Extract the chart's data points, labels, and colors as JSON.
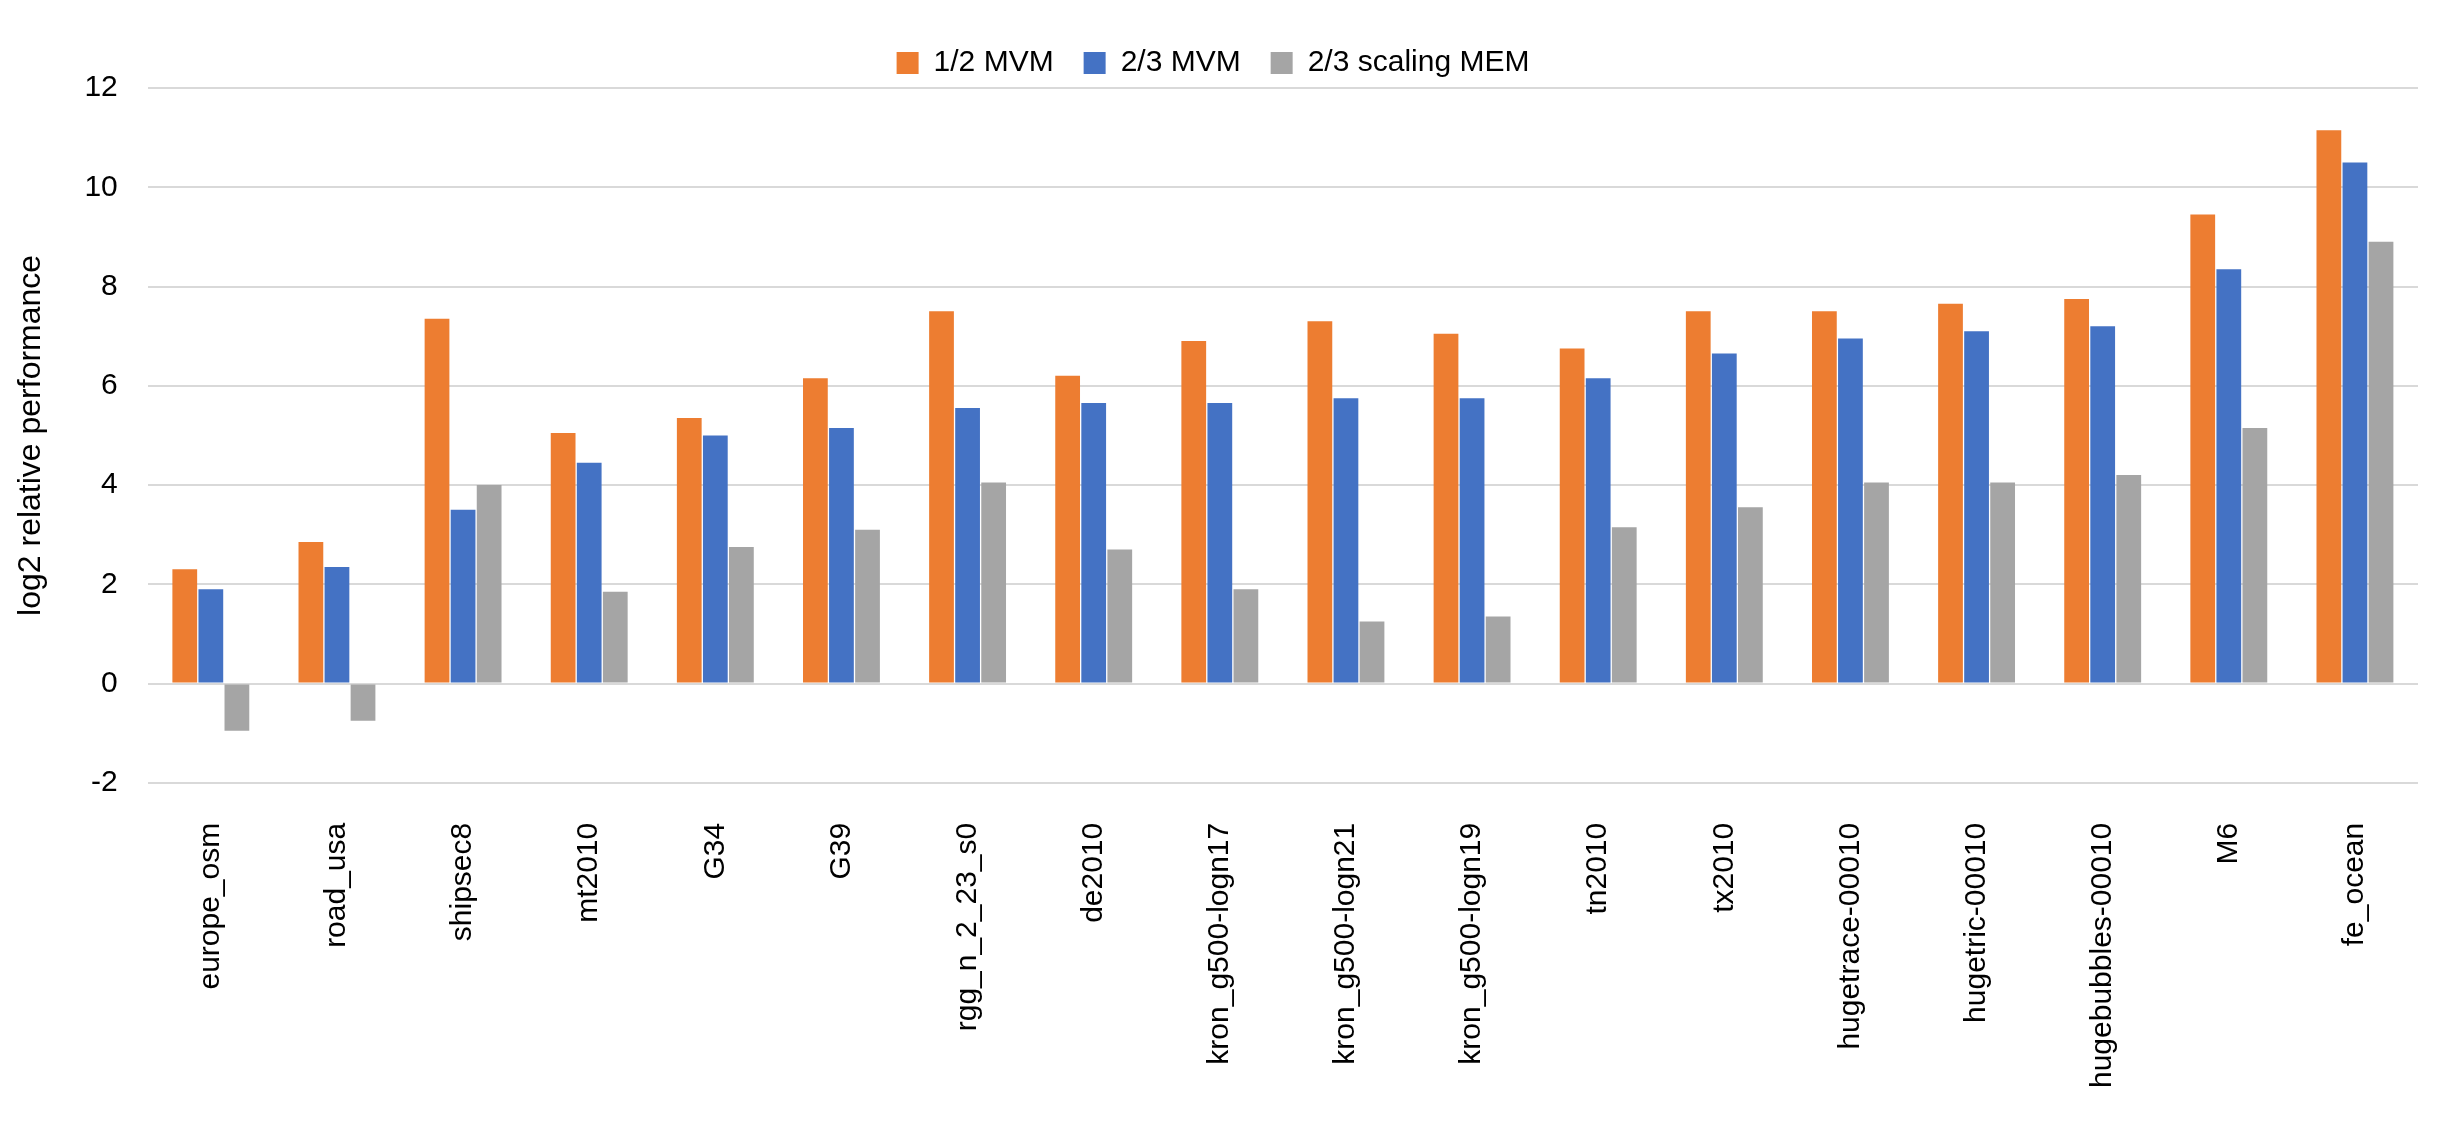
{
  "chart_data": {
    "type": "bar",
    "ylabel": "log2 relative performance",
    "categories": [
      "europe_osm",
      "road_usa",
      "shipsec8",
      "mt2010",
      "G34",
      "G39",
      "rgg_n_2_23_s0",
      "de2010",
      "kron_g500-logn17",
      "kron_g500-logn21",
      "kron_g500-logn19",
      "tn2010",
      "tx2010",
      "hugetrace-00010",
      "hugetric-00010",
      "hugebubbles-00010",
      "M6",
      "fe_ocean"
    ],
    "series": [
      {
        "name": "1/2 MVM",
        "color": "#ed7d31",
        "values": [
          2.3,
          2.85,
          7.35,
          5.05,
          5.35,
          6.15,
          7.5,
          6.2,
          6.9,
          7.3,
          7.05,
          6.75,
          7.5,
          7.5,
          7.65,
          7.75,
          9.45,
          11.15
        ]
      },
      {
        "name": "2/3 MVM",
        "color": "#4472c4",
        "values": [
          1.9,
          2.35,
          3.5,
          4.45,
          5.0,
          5.15,
          5.55,
          5.65,
          5.65,
          5.75,
          5.75,
          6.15,
          6.65,
          6.95,
          7.1,
          7.2,
          8.35,
          10.5
        ]
      },
      {
        "name": "2/3 scaling MEM",
        "color": "#a5a5a5",
        "values": [
          -0.95,
          -0.75,
          4.0,
          1.85,
          2.75,
          3.1,
          4.05,
          2.7,
          1.9,
          1.25,
          1.35,
          3.15,
          3.55,
          4.05,
          4.05,
          4.2,
          5.15,
          8.9
        ]
      }
    ],
    "ylim": [
      -2,
      12
    ],
    "yticks": [
      -2,
      0,
      2,
      4,
      6,
      8,
      10,
      12
    ],
    "grid": "y",
    "legend": "top"
  }
}
